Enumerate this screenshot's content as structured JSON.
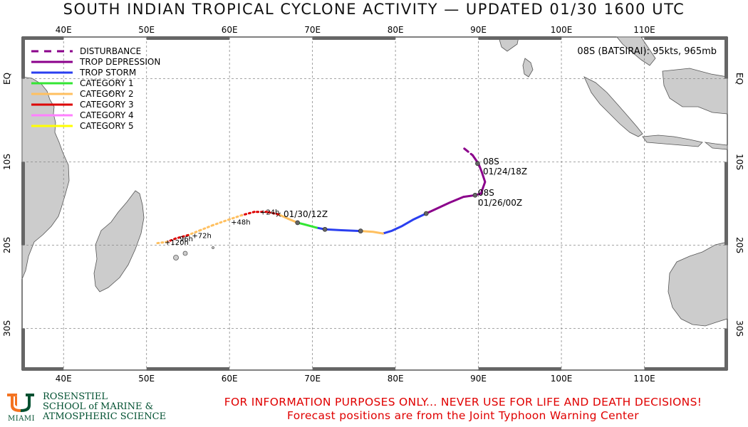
{
  "title": "SOUTH INDIAN TROPICAL CYCLONE ACTIVITY — UPDATED 01/30 1600 UTC",
  "storm_label": "08S (BATSIRAI): 95kts, 965mb",
  "axes": {
    "lon_ticks": [
      "40E",
      "50E",
      "60E",
      "70E",
      "80E",
      "90E",
      "100E",
      "110E"
    ],
    "lat_ticks": [
      "EQ",
      "10S",
      "20S",
      "30S"
    ]
  },
  "legend": [
    {
      "label": "DISTURBANCE",
      "color": "#8b008b",
      "dashed": true
    },
    {
      "label": "TROP DEPRESSION",
      "color": "#8b008b",
      "dashed": false
    },
    {
      "label": "TROP STORM",
      "color": "#2a3ff0",
      "dashed": false
    },
    {
      "label": "CATEGORY 1",
      "color": "#33e633",
      "dashed": false
    },
    {
      "label": "CATEGORY 2",
      "color": "#ffc060",
      "dashed": false
    },
    {
      "label": "CATEGORY 3",
      "color": "#dd0000",
      "dashed": false
    },
    {
      "label": "CATEGORY 4",
      "color": "#ff80ff",
      "dashed": false
    },
    {
      "label": "CATEGORY 5",
      "color": "#ffff00",
      "dashed": false
    }
  ],
  "track": {
    "storm_id_1": "08S",
    "date_1": "01/24/18Z",
    "storm_id_2": "08S",
    "date_2": "01/26/00Z",
    "current_date": "01/30/12Z",
    "segments": [
      {
        "intensity": "disturbance",
        "color": "#8b008b",
        "dashed": true,
        "points": [
          [
            88.3,
            -8.4
          ],
          [
            89.3,
            -9.2
          ]
        ]
      },
      {
        "intensity": "depression",
        "color": "#8b008b",
        "dashed": false,
        "points": [
          [
            89.3,
            -9.2
          ],
          [
            90.0,
            -10.2
          ],
          [
            90.4,
            -11.2
          ],
          [
            90.8,
            -12.4
          ],
          [
            90.3,
            -13.8
          ],
          [
            89.6,
            -14.0
          ],
          [
            88.2,
            -14.2
          ],
          [
            86.5,
            -14.9
          ],
          [
            85.0,
            -15.6
          ],
          [
            83.7,
            -16.2
          ]
        ]
      },
      {
        "intensity": "storm",
        "color": "#2a3ff0",
        "dashed": false,
        "points": [
          [
            83.7,
            -16.2
          ],
          [
            82.2,
            -16.9
          ],
          [
            80.8,
            -17.7
          ],
          [
            79.5,
            -18.3
          ],
          [
            78.5,
            -18.6
          ]
        ]
      },
      {
        "intensity": "category-2",
        "color": "#ffc060",
        "dashed": false,
        "points": [
          [
            78.5,
            -18.6
          ],
          [
            77.3,
            -18.4
          ],
          [
            75.8,
            -18.3
          ]
        ]
      },
      {
        "intensity": "storm",
        "color": "#2a3ff0",
        "dashed": false,
        "points": [
          [
            75.8,
            -18.3
          ],
          [
            73.5,
            -18.2
          ],
          [
            71.5,
            -18.1
          ],
          [
            70.5,
            -17.9
          ]
        ]
      },
      {
        "intensity": "category-1",
        "color": "#33e633",
        "dashed": false,
        "points": [
          [
            70.5,
            -17.9
          ],
          [
            69.0,
            -17.5
          ],
          [
            68.2,
            -17.3
          ]
        ]
      },
      {
        "intensity": "category-2",
        "color": "#ffc060",
        "dashed": false,
        "points": [
          [
            68.2,
            -17.3
          ],
          [
            67.0,
            -16.8
          ],
          [
            65.9,
            -16.3
          ]
        ]
      }
    ],
    "fixes": [
      [
        89.9,
        -10.2
      ],
      [
        89.6,
        -14.0
      ],
      [
        83.7,
        -16.2
      ],
      [
        75.8,
        -18.3
      ],
      [
        71.5,
        -18.1
      ],
      [
        68.2,
        -17.3
      ]
    ],
    "current_position": [
      65.9,
      -16.3
    ]
  },
  "forecast": {
    "points": [
      [
        65.9,
        -16.3
      ],
      [
        64.5,
        -16.0
      ],
      [
        63.0,
        -16.0
      ],
      [
        61.5,
        -16.4
      ],
      [
        60.0,
        -16.9
      ],
      [
        58.0,
        -17.6
      ],
      [
        56.5,
        -18.2
      ],
      [
        55.0,
        -18.8
      ],
      [
        53.5,
        -19.2
      ],
      [
        52.5,
        -19.6
      ],
      [
        51.0,
        -19.8
      ]
    ],
    "colors": [
      "#dd0000",
      "#dd0000",
      "#dd0000",
      "#ffc060",
      "#ffc060",
      "#ffc060",
      "#ffc060",
      "#dd0000",
      "#dd0000",
      "#ffc060"
    ],
    "taus": [
      {
        "label": "+24h",
        "lon": 63.5,
        "lat": -16.0
      },
      {
        "label": "+48h",
        "lon": 60.0,
        "lat": -17.2
      },
      {
        "label": "+72h",
        "lon": 55.3,
        "lat": -18.8
      },
      {
        "label": "96h",
        "lon": 53.8,
        "lat": -19.2
      },
      {
        "label": "+120h",
        "lon": 52.0,
        "lat": -19.6
      }
    ]
  },
  "logo": {
    "school_line1": "ROSENSTIEL",
    "school_line2": "SCHOOL of MARINE &",
    "school_line3": "ATMOSPHERIC SCIENCE",
    "miami": "MIAMI",
    "brand_green": "#005030",
    "brand_orange": "#f47321"
  },
  "disclaimer_line1": "FOR INFORMATION PURPOSES ONLY... NEVER USE FOR LIFE AND DEATH DECISIONS!",
  "disclaimer_line2": "Forecast positions are from the Joint Typhoon Warning Center"
}
